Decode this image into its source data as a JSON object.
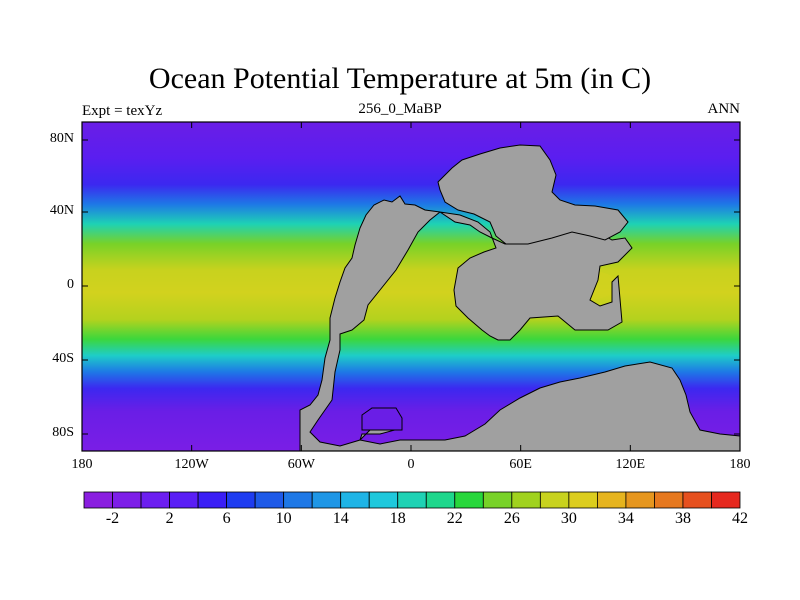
{
  "title": "Ocean Potential Temperature at 5m (in C)",
  "left_label": "Expt = texYz",
  "center_label": "256_0_MaBP",
  "right_label": "ANN",
  "lat_ticks": [
    "80N",
    "40N",
    "0",
    "40S",
    "80S"
  ],
  "lon_ticks": [
    "180",
    "120W",
    "60W",
    "0",
    "60E",
    "120E",
    "180"
  ],
  "colorbar": {
    "colors": [
      "#8a1ee0",
      "#7d1ee8",
      "#6c1ef0",
      "#5a1ef5",
      "#3a1ef5",
      "#1e3cf0",
      "#1e5ae8",
      "#1e78e6",
      "#1e96e6",
      "#1eb4e6",
      "#1ec8dc",
      "#1ed2b4",
      "#1ed78c",
      "#28d73c",
      "#78d228",
      "#a0d21e",
      "#c8d21e",
      "#dccd1e",
      "#e6b41e",
      "#e6961e",
      "#e6781e",
      "#e6501e",
      "#e6281e"
    ],
    "labels": [
      "-2",
      "2",
      "6",
      "10",
      "14",
      "18",
      "22",
      "26",
      "30",
      "34",
      "38",
      "42"
    ]
  },
  "colors": {
    "land": "#a0a0a0",
    "land_edge": "#000000"
  }
}
